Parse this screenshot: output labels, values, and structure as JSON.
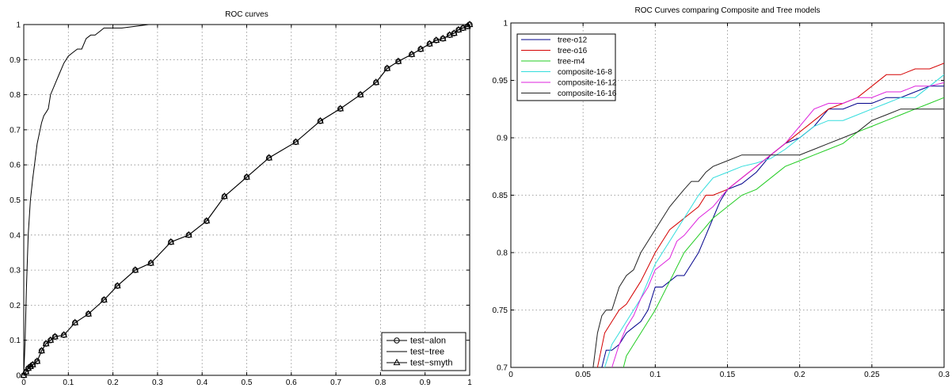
{
  "chart_data": [
    {
      "type": "line",
      "title": "ROC curves",
      "xlabel": "",
      "ylabel": "",
      "xlim": [
        0,
        1
      ],
      "ylim": [
        0,
        1
      ],
      "xticks": [
        "0",
        "0.1",
        "0.2",
        "0.3",
        "0.4",
        "0.5",
        "0.6",
        "0.7",
        "0.8",
        "0.9",
        "1"
      ],
      "yticks": [
        "0",
        "0.1",
        "0.2",
        "0.3",
        "0.4",
        "0.5",
        "0.6",
        "0.7",
        "0.8",
        "0.9",
        "1"
      ],
      "grid": true,
      "legend_position": "bottom-right",
      "series": [
        {
          "name": "test−alon",
          "marker": "circle",
          "x": [
            0,
            0.005,
            0.01,
            0.015,
            0.02,
            0.03,
            0.04,
            0.05,
            0.06,
            0.07,
            0.09,
            0.115,
            0.145,
            0.18,
            0.21,
            0.25,
            0.285,
            0.33,
            0.37,
            0.41,
            0.45,
            0.5,
            0.55,
            0.61,
            0.665,
            0.71,
            0.755,
            0.79,
            0.815,
            0.84,
            0.87,
            0.89,
            0.91,
            0.925,
            0.94,
            0.955,
            0.965,
            0.975,
            0.985,
            0.995,
            1.0
          ],
          "y": [
            0,
            0.01,
            0.02,
            0.025,
            0.03,
            0.04,
            0.07,
            0.09,
            0.1,
            0.11,
            0.115,
            0.15,
            0.175,
            0.215,
            0.255,
            0.3,
            0.32,
            0.38,
            0.4,
            0.44,
            0.51,
            0.565,
            0.62,
            0.665,
            0.725,
            0.76,
            0.8,
            0.835,
            0.875,
            0.895,
            0.915,
            0.93,
            0.945,
            0.955,
            0.96,
            0.97,
            0.975,
            0.985,
            0.99,
            0.995,
            1.0
          ]
        },
        {
          "name": "test−tree",
          "marker": "none",
          "x": [
            0,
            0.003,
            0.006,
            0.01,
            0.015,
            0.02,
            0.025,
            0.03,
            0.035,
            0.04,
            0.045,
            0.05,
            0.055,
            0.06,
            0.07,
            0.08,
            0.09,
            0.1,
            0.11,
            0.12,
            0.13,
            0.14,
            0.15,
            0.16,
            0.17,
            0.18,
            0.2,
            0.22,
            0.25,
            0.28,
            0.3,
            0.4
          ],
          "y": [
            0,
            0.1,
            0.25,
            0.4,
            0.5,
            0.56,
            0.61,
            0.66,
            0.69,
            0.72,
            0.74,
            0.75,
            0.76,
            0.8,
            0.83,
            0.86,
            0.89,
            0.91,
            0.92,
            0.93,
            0.93,
            0.96,
            0.97,
            0.97,
            0.98,
            0.99,
            0.99,
            0.99,
            0.995,
            1.0,
            1.0,
            1.0
          ]
        },
        {
          "name": "test−smyth",
          "marker": "triangle",
          "x": [
            0,
            0.005,
            0.01,
            0.015,
            0.02,
            0.03,
            0.04,
            0.05,
            0.06,
            0.07,
            0.09,
            0.115,
            0.145,
            0.18,
            0.21,
            0.25,
            0.285,
            0.33,
            0.37,
            0.41,
            0.45,
            0.5,
            0.55,
            0.61,
            0.665,
            0.71,
            0.755,
            0.79,
            0.815,
            0.84,
            0.87,
            0.89,
            0.91,
            0.925,
            0.94,
            0.955,
            0.965,
            0.975,
            0.985,
            0.995,
            1.0
          ],
          "y": [
            0,
            0.01,
            0.02,
            0.025,
            0.03,
            0.04,
            0.07,
            0.09,
            0.1,
            0.11,
            0.115,
            0.15,
            0.175,
            0.215,
            0.255,
            0.3,
            0.32,
            0.38,
            0.4,
            0.44,
            0.51,
            0.565,
            0.62,
            0.665,
            0.725,
            0.76,
            0.8,
            0.835,
            0.875,
            0.895,
            0.915,
            0.93,
            0.945,
            0.955,
            0.96,
            0.97,
            0.975,
            0.985,
            0.99,
            0.995,
            1.0
          ]
        }
      ]
    },
    {
      "type": "line",
      "title": "ROC Curves comparing Composite and Tree models",
      "xlabel": "",
      "ylabel": "",
      "xlim": [
        0,
        0.3
      ],
      "ylim": [
        0.7,
        1
      ],
      "xticks": [
        "0",
        "0.05",
        "0.1",
        "0.15",
        "0.2",
        "0.25",
        "0.3"
      ],
      "yticks": [
        "0.7",
        "0.75",
        "0.8",
        "0.85",
        "0.9",
        "0.95",
        "1"
      ],
      "grid": true,
      "legend_position": "top-left",
      "series": [
        {
          "name": "tree-o12",
          "color": "#00008b",
          "x": [
            0.063,
            0.066,
            0.07,
            0.075,
            0.08,
            0.085,
            0.09,
            0.095,
            0.1,
            0.105,
            0.11,
            0.115,
            0.12,
            0.125,
            0.13,
            0.135,
            0.14,
            0.145,
            0.15,
            0.16,
            0.17,
            0.18,
            0.19,
            0.2,
            0.21,
            0.22,
            0.23,
            0.24,
            0.25,
            0.26,
            0.27,
            0.28,
            0.29,
            0.3
          ],
          "y": [
            0.7,
            0.715,
            0.715,
            0.72,
            0.73,
            0.735,
            0.74,
            0.75,
            0.77,
            0.77,
            0.775,
            0.78,
            0.78,
            0.79,
            0.8,
            0.815,
            0.83,
            0.845,
            0.855,
            0.86,
            0.87,
            0.885,
            0.895,
            0.9,
            0.91,
            0.925,
            0.925,
            0.93,
            0.93,
            0.935,
            0.935,
            0.94,
            0.945,
            0.945
          ]
        },
        {
          "name": "tree-o16",
          "color": "#d40000",
          "x": [
            0.06,
            0.065,
            0.07,
            0.075,
            0.08,
            0.085,
            0.09,
            0.1,
            0.105,
            0.11,
            0.115,
            0.12,
            0.13,
            0.135,
            0.14,
            0.15,
            0.16,
            0.17,
            0.18,
            0.19,
            0.2,
            0.21,
            0.22,
            0.23,
            0.24,
            0.25,
            0.26,
            0.27,
            0.28,
            0.29,
            0.3
          ],
          "y": [
            0.7,
            0.73,
            0.74,
            0.75,
            0.755,
            0.765,
            0.775,
            0.8,
            0.81,
            0.82,
            0.825,
            0.83,
            0.84,
            0.85,
            0.85,
            0.855,
            0.865,
            0.875,
            0.885,
            0.895,
            0.905,
            0.915,
            0.925,
            0.93,
            0.935,
            0.945,
            0.955,
            0.955,
            0.96,
            0.96,
            0.965
          ]
        },
        {
          "name": "tree-m4",
          "color": "#22cc22",
          "x": [
            0.078,
            0.08,
            0.085,
            0.09,
            0.095,
            0.1,
            0.11,
            0.12,
            0.13,
            0.14,
            0.15,
            0.16,
            0.17,
            0.18,
            0.19,
            0.2,
            0.21,
            0.22,
            0.23,
            0.24,
            0.25,
            0.26,
            0.27,
            0.28,
            0.29,
            0.3
          ],
          "y": [
            0.7,
            0.71,
            0.72,
            0.73,
            0.74,
            0.75,
            0.775,
            0.8,
            0.815,
            0.83,
            0.84,
            0.85,
            0.855,
            0.865,
            0.875,
            0.88,
            0.885,
            0.89,
            0.895,
            0.905,
            0.91,
            0.915,
            0.92,
            0.925,
            0.93,
            0.935
          ]
        },
        {
          "name": "composite-16-8",
          "color": "#33dddd",
          "x": [
            0.065,
            0.07,
            0.075,
            0.08,
            0.085,
            0.09,
            0.095,
            0.1,
            0.105,
            0.11,
            0.115,
            0.12,
            0.13,
            0.14,
            0.15,
            0.16,
            0.17,
            0.18,
            0.19,
            0.2,
            0.21,
            0.22,
            0.23,
            0.24,
            0.25,
            0.26,
            0.27,
            0.28,
            0.29,
            0.3
          ],
          "y": [
            0.7,
            0.72,
            0.73,
            0.74,
            0.75,
            0.76,
            0.775,
            0.79,
            0.8,
            0.81,
            0.82,
            0.83,
            0.85,
            0.865,
            0.87,
            0.875,
            0.878,
            0.882,
            0.89,
            0.9,
            0.91,
            0.915,
            0.915,
            0.92,
            0.925,
            0.93,
            0.935,
            0.935,
            0.945,
            0.955
          ]
        },
        {
          "name": "composite-16-12",
          "color": "#dd22dd",
          "x": [
            0.07,
            0.075,
            0.08,
            0.085,
            0.09,
            0.095,
            0.1,
            0.105,
            0.11,
            0.115,
            0.12,
            0.13,
            0.14,
            0.15,
            0.16,
            0.17,
            0.18,
            0.19,
            0.2,
            0.21,
            0.22,
            0.23,
            0.24,
            0.25,
            0.26,
            0.27,
            0.28,
            0.29,
            0.3
          ],
          "y": [
            0.7,
            0.72,
            0.735,
            0.745,
            0.76,
            0.77,
            0.785,
            0.79,
            0.795,
            0.81,
            0.815,
            0.83,
            0.84,
            0.855,
            0.865,
            0.875,
            0.885,
            0.895,
            0.91,
            0.925,
            0.93,
            0.93,
            0.935,
            0.935,
            0.94,
            0.94,
            0.945,
            0.945,
            0.948
          ]
        },
        {
          "name": "composite-16-16",
          "color": "#222222",
          "x": [
            0.057,
            0.06,
            0.063,
            0.066,
            0.07,
            0.075,
            0.08,
            0.085,
            0.09,
            0.1,
            0.11,
            0.12,
            0.125,
            0.13,
            0.135,
            0.14,
            0.15,
            0.16,
            0.17,
            0.18,
            0.19,
            0.2,
            0.21,
            0.22,
            0.23,
            0.24,
            0.25,
            0.26,
            0.27,
            0.28,
            0.29,
            0.3
          ],
          "y": [
            0.7,
            0.73,
            0.745,
            0.75,
            0.75,
            0.77,
            0.78,
            0.785,
            0.8,
            0.82,
            0.84,
            0.855,
            0.862,
            0.862,
            0.87,
            0.875,
            0.88,
            0.885,
            0.885,
            0.885,
            0.885,
            0.885,
            0.89,
            0.895,
            0.9,
            0.905,
            0.915,
            0.92,
            0.925,
            0.925,
            0.925,
            0.925
          ]
        }
      ]
    }
  ]
}
